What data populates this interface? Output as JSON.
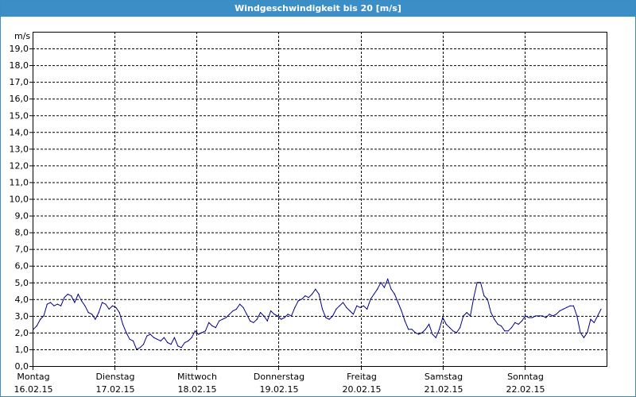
{
  "window": {
    "title": "Windgeschwindigkeit bis 20 [m/s]"
  },
  "colors": {
    "titlebar": "#3b8fc6",
    "series": "#00008b",
    "grid": "#000000"
  },
  "chart_data": {
    "type": "line",
    "title": "Windgeschwindigkeit bis 20 [m/s]",
    "ylabel": "m/s",
    "xlabel": "",
    "ylim": [
      0,
      20
    ],
    "y_ticks": [
      "0,0",
      "1,0",
      "2,0",
      "3,0",
      "4,0",
      "5,0",
      "6,0",
      "7,0",
      "8,0",
      "9,0",
      "10,0",
      "11,0",
      "12,0",
      "13,0",
      "14,0",
      "15,0",
      "16,0",
      "17,0",
      "18,0",
      "19,0"
    ],
    "grid": true,
    "x_range_days": [
      0,
      7
    ],
    "days": [
      {
        "weekday": "Montag",
        "date": "16.02.15"
      },
      {
        "weekday": "Dienstag",
        "date": "17.02.15"
      },
      {
        "weekday": "Mittwoch",
        "date": "18.02.15"
      },
      {
        "weekday": "Donnerstag",
        "date": "19.02.15"
      },
      {
        "weekday": "Freitag",
        "date": "20.02.15"
      },
      {
        "weekday": "Samstag",
        "date": "21.02.15"
      },
      {
        "weekday": "Sonntag",
        "date": "22.02.15"
      }
    ],
    "series": [
      {
        "values": [
          2.2,
          2.4,
          2.8,
          3.0,
          3.7,
          3.8,
          3.6,
          3.7,
          3.6,
          4.1,
          4.3,
          4.2,
          3.8,
          4.3,
          3.9,
          3.6,
          3.2,
          3.1,
          2.8,
          3.2,
          3.8,
          3.7,
          3.4,
          3.6,
          3.5,
          3.2,
          2.5,
          2.0,
          1.6,
          1.5,
          1.0,
          1.1,
          1.3,
          1.8,
          1.9,
          1.7,
          1.6,
          1.5,
          1.7,
          1.4,
          1.3,
          1.7,
          1.2,
          1.1,
          1.4,
          1.5,
          1.7,
          2.1,
          1.9,
          2.0,
          2.1,
          2.6,
          2.4,
          2.3,
          2.7,
          2.8,
          2.9,
          3.1,
          3.3,
          3.4,
          3.7,
          3.5,
          3.1,
          2.7,
          2.6,
          2.8,
          3.2,
          3.0,
          2.7,
          3.3,
          3.1,
          3.0,
          2.8,
          2.9,
          3.1,
          3.0,
          3.5,
          3.9,
          4.0,
          4.2,
          4.1,
          4.3,
          4.6,
          4.3,
          3.4,
          2.9,
          2.8,
          3.0,
          3.4,
          3.6,
          3.8,
          3.5,
          3.3,
          3.1,
          3.6,
          3.5,
          3.6,
          3.4,
          4.0,
          4.3,
          4.6,
          5.0,
          4.7,
          5.2,
          4.6,
          4.3,
          3.8,
          3.3,
          2.7,
          2.2,
          2.2,
          2.0,
          1.9,
          2.0,
          2.2,
          2.5,
          1.9,
          1.7,
          2.2,
          2.9,
          2.5,
          2.3,
          2.1,
          2.0,
          2.3,
          3.0,
          3.2,
          3.0,
          4.1,
          5.0,
          5.0,
          4.2,
          4.0,
          3.2,
          2.8,
          2.5,
          2.4,
          2.1,
          2.1,
          2.3,
          2.6,
          2.5,
          2.7,
          3.0,
          2.9,
          2.9,
          3.0,
          3.0,
          3.0,
          2.9,
          3.1,
          3.0,
          3.1,
          3.3,
          3.4,
          3.5,
          3.6,
          3.6,
          3.0,
          2.0,
          1.7,
          2.0,
          2.8,
          2.6,
          3.0,
          3.4
        ]
      }
    ]
  }
}
